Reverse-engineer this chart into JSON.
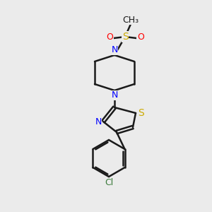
{
  "bg_color": "#ebebeb",
  "bond_color": "#1a1a1a",
  "atom_colors": {
    "N": "#0000ff",
    "S": "#ccaa00",
    "O": "#ff0000",
    "Cl": "#3a7a3a",
    "C": "#1a1a1a"
  },
  "lw": 1.8,
  "font_size": 9
}
